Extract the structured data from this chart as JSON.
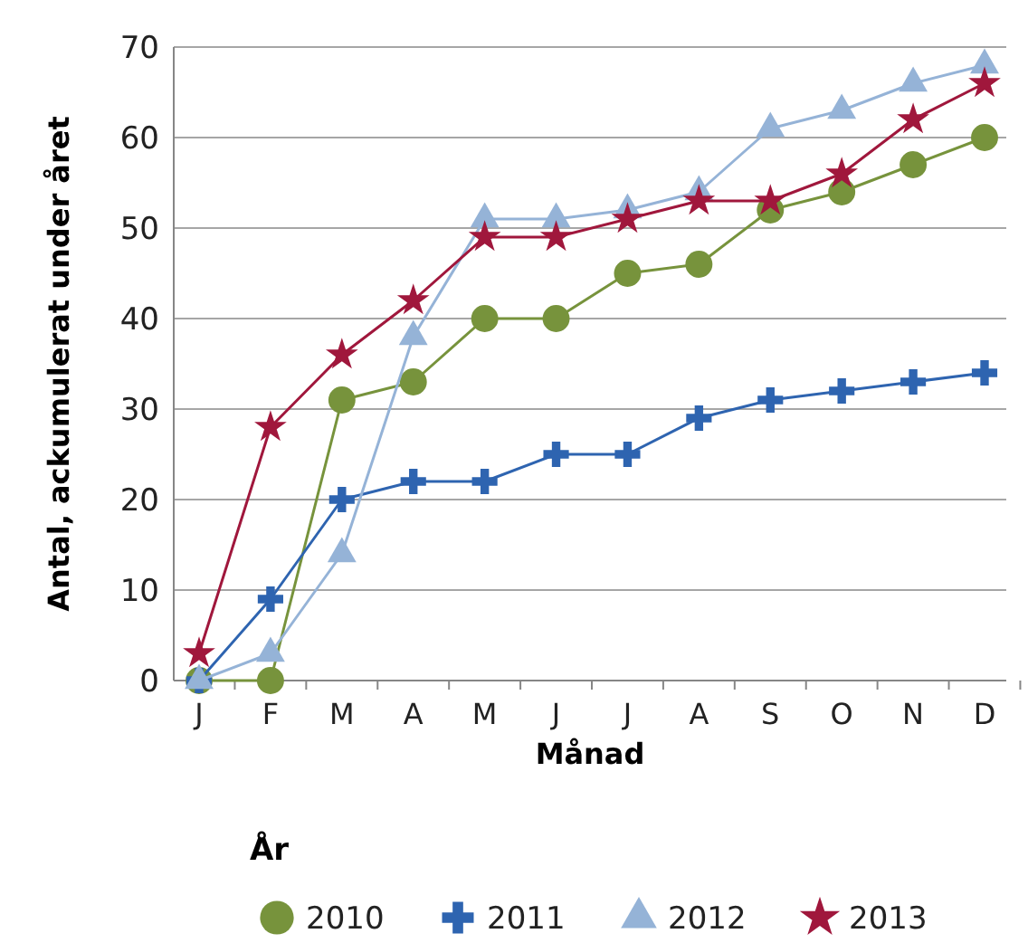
{
  "chart_data": {
    "type": "line",
    "xlabel": "Månad",
    "ylabel": "Antal, ackumulerat under året",
    "legend_title": "År",
    "categories": [
      "J",
      "F",
      "M",
      "A",
      "M",
      "J",
      "J",
      "A",
      "S",
      "O",
      "N",
      "D"
    ],
    "ylim": [
      0,
      70
    ],
    "yticks": [
      0,
      10,
      20,
      30,
      40,
      50,
      60,
      70
    ],
    "grid": "y",
    "legend": "bottom",
    "series": [
      {
        "name": "2010",
        "color": "#77933c",
        "marker": "circle",
        "values": [
          0,
          0,
          31,
          33,
          40,
          40,
          45,
          46,
          52,
          54,
          57,
          60
        ]
      },
      {
        "name": "2011",
        "color": "#2e64b0",
        "marker": "cross",
        "values": [
          0,
          9,
          20,
          22,
          22,
          25,
          25,
          29,
          31,
          32,
          33,
          34
        ]
      },
      {
        "name": "2012",
        "color": "#95b3d7",
        "marker": "triangle",
        "values": [
          0,
          3,
          14,
          38,
          51,
          51,
          52,
          54,
          61,
          63,
          66,
          68
        ]
      },
      {
        "name": "2013",
        "color": "#a0173c",
        "marker": "star",
        "values": [
          3,
          28,
          36,
          42,
          49,
          49,
          51,
          53,
          53,
          56,
          62,
          66
        ]
      }
    ]
  }
}
